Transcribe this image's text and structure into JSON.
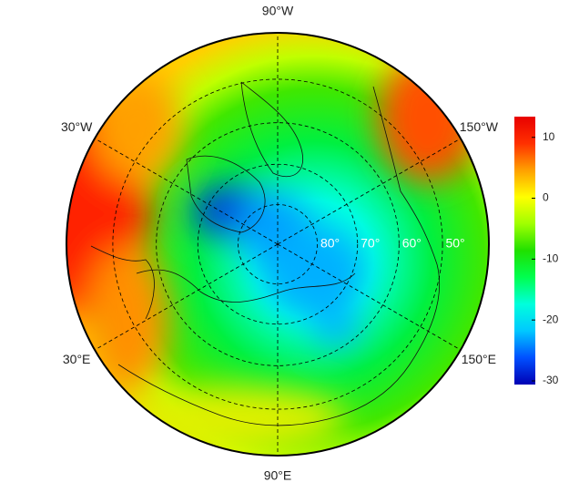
{
  "chart_data": {
    "type": "polar-map",
    "longitudes": [
      {
        "value": -90,
        "label": "90°W"
      },
      {
        "value": -30,
        "label": "30°W"
      },
      {
        "value": -150,
        "label": "150°W"
      },
      {
        "value": 30,
        "label": "30°E"
      },
      {
        "value": 150,
        "label": "150°E"
      },
      {
        "value": 90,
        "label": "90°E"
      }
    ],
    "latitudes": [
      {
        "value": 80,
        "label": "80°"
      },
      {
        "value": 70,
        "label": "70°"
      },
      {
        "value": 60,
        "label": "60°"
      },
      {
        "value": 50,
        "label": "50°"
      }
    ],
    "boundary_latitude": 40,
    "colorbar": {
      "lim": [
        -30.6,
        13.4
      ],
      "ticks": [
        10,
        0,
        -10,
        -20,
        -30
      ],
      "colors": [
        "#0000b4",
        "#0050ff",
        "#00c8ff",
        "#00ffdc",
        "#00ff50",
        "#20e000",
        "#a0ff00",
        "#ffff00",
        "#ffa000",
        "#ff3000",
        "#e80000"
      ]
    }
  }
}
